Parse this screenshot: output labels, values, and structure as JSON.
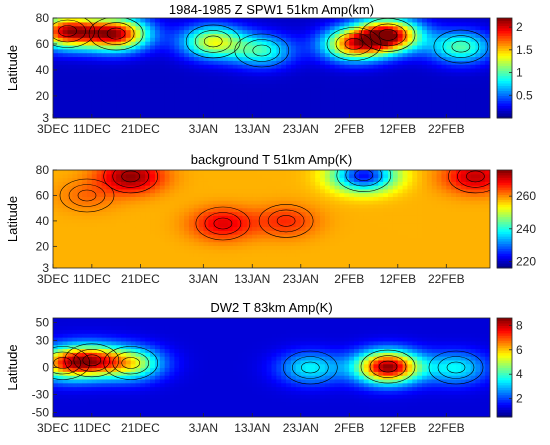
{
  "figure": {
    "x_ticks": [
      "3DEC",
      "11DEC",
      "21DEC",
      "3JAN",
      "13JAN",
      "23JAN",
      "2FEB",
      "12FEB",
      "22FEB"
    ],
    "colormap": "jet"
  },
  "chart_data": [
    {
      "type": "heatmap",
      "title": "1984-1985 Z SPW1 51km Amp(km)",
      "ylabel": "Latitude",
      "x_tick_labels": [
        "3DEC",
        "11DEC",
        "21DEC",
        "3JAN",
        "13JAN",
        "23JAN",
        "2FEB",
        "12FEB",
        "22FEB"
      ],
      "x_range": [
        "1984-12-03",
        "1985-03-03"
      ],
      "ylim": [
        3,
        80
      ],
      "y_ticks": [
        3,
        20,
        40,
        60,
        80
      ],
      "colorbar": {
        "min": 0.0,
        "max": 2.2,
        "ticks": [
          0.5,
          1,
          1.5,
          2
        ],
        "tick_labels": [
          "0.5",
          "1",
          "1.5",
          "2"
        ]
      },
      "features": [
        {
          "date": "1984-12-06",
          "lat": 70,
          "value": 2.0
        },
        {
          "date": "1984-12-16",
          "lat": 68,
          "value": 2.0
        },
        {
          "date": "1985-01-05",
          "lat": 62,
          "value": 1.3
        },
        {
          "date": "1985-01-15",
          "lat": 55,
          "value": 0.9
        },
        {
          "date": "1985-02-03",
          "lat": 60,
          "value": 1.6
        },
        {
          "date": "1985-02-10",
          "lat": 67,
          "value": 2.1
        },
        {
          "date": "1985-02-25",
          "lat": 58,
          "value": 1.0
        }
      ],
      "background_value": 0.15
    },
    {
      "type": "heatmap",
      "title": "background T 51km Amp(K)",
      "ylabel": "Latitude",
      "x_tick_labels": [
        "3DEC",
        "11DEC",
        "21DEC",
        "3JAN",
        "13JAN",
        "23JAN",
        "2FEB",
        "12FEB",
        "22FEB"
      ],
      "x_range": [
        "1984-12-03",
        "1985-03-03"
      ],
      "ylim": [
        3,
        80
      ],
      "y_ticks": [
        3,
        20,
        40,
        60,
        80
      ],
      "colorbar": {
        "min": 216,
        "max": 276,
        "ticks": [
          220,
          240,
          260
        ],
        "tick_labels": [
          "220",
          "240",
          "260"
        ]
      },
      "features": [
        {
          "date": "1984-12-19",
          "lat": 75,
          "value": 275
        },
        {
          "date": "1984-12-10",
          "lat": 60,
          "value": 262
        },
        {
          "date": "1985-01-07",
          "lat": 38,
          "value": 270
        },
        {
          "date": "1985-01-20",
          "lat": 40,
          "value": 266
        },
        {
          "date": "1985-02-05",
          "lat": 76,
          "value": 224
        },
        {
          "date": "1985-02-28",
          "lat": 75,
          "value": 272
        }
      ],
      "background_value": 258
    },
    {
      "type": "heatmap",
      "title": "DW2 T 83km Amp(K)",
      "ylabel": "Latitude",
      "x_tick_labels": [
        "3DEC",
        "11DEC",
        "21DEC",
        "3JAN",
        "13JAN",
        "23JAN",
        "2FEB",
        "12FEB",
        "22FEB"
      ],
      "x_range": [
        "1984-12-03",
        "1985-03-03"
      ],
      "ylim": [
        -55,
        55
      ],
      "y_ticks": [
        -50,
        -30,
        0,
        30,
        50
      ],
      "colorbar": {
        "min": 0.5,
        "max": 8.6,
        "ticks": [
          2,
          4,
          6,
          8
        ],
        "tick_labels": [
          "2",
          "4",
          "6",
          "8"
        ]
      },
      "features": [
        {
          "date": "1984-12-05",
          "lat": 5,
          "value": 5.5
        },
        {
          "date": "1984-12-11",
          "lat": 8,
          "value": 6.0
        },
        {
          "date": "1984-12-19",
          "lat": 5,
          "value": 5.0
        },
        {
          "date": "1985-01-25",
          "lat": 0,
          "value": 3.5
        },
        {
          "date": "1985-02-10",
          "lat": 1,
          "value": 8.5
        },
        {
          "date": "1985-02-24",
          "lat": 0,
          "value": 3.5
        }
      ],
      "background_value": 1.2
    }
  ]
}
